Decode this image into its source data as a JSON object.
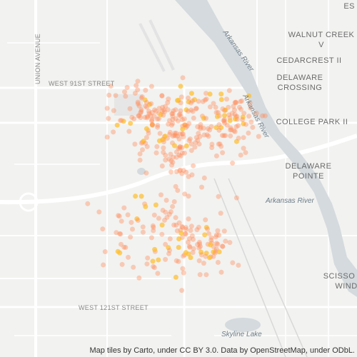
{
  "labels": {
    "top_right": "ES",
    "walnut_creek": [
      "WALNUT CREEK",
      "V"
    ],
    "cedarcrest": "CEDARCREST II",
    "delaware_crossing": [
      "DELAWARE",
      "CROSSING"
    ],
    "college_park": "COLLEGE PARK II",
    "delaware_pointe": [
      "DELAWARE",
      "POINTE"
    ],
    "river_upper": "Arkansas River",
    "river_middle": "Arkansas River",
    "river_lower": "Arkansas River",
    "scissortail": "SCISSO",
    "wind": "WIND",
    "west_91st": "WEST 91ST STREET",
    "west_121st": "WEST 121ST STREET",
    "union_avenue": "UNION AVENUE",
    "skyline_lake": "Skyline Lake"
  },
  "attribution": "Map tiles by Carto, under CC BY 3.0. Data by OpenStreetMap, under ODbL."
}
